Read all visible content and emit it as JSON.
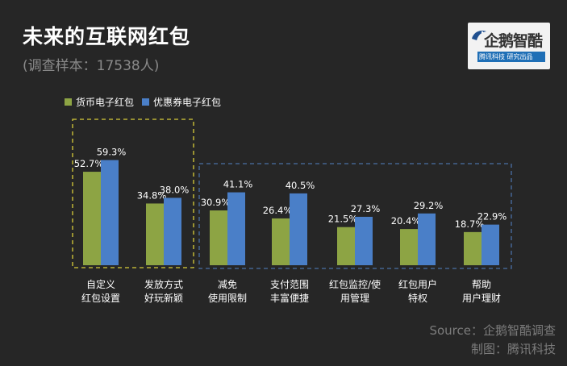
{
  "header": {
    "title": "未来的互联网红包",
    "subtitle": "(调查样本：17538人)"
  },
  "logo": {
    "name": "企鹅智酷",
    "tagline": "腾讯科技 研究出品"
  },
  "legend": [
    "货币电子红包",
    "优惠券电子红包"
  ],
  "source": {
    "line1": "Source：企鹅智酷调查",
    "line2": "制图：腾讯科技"
  },
  "colors": {
    "background": "#262626",
    "series1": "#8da444",
    "series2": "#4a7fc8",
    "box1": "#d8cc3a",
    "box2": "#4a6fa5"
  },
  "chart_data": {
    "type": "bar",
    "categories": [
      [
        "自定义",
        "红包设置"
      ],
      [
        "发放方式",
        "好玩新颖"
      ],
      [
        "减免",
        "使用限制"
      ],
      [
        "支付范围",
        "丰富便捷"
      ],
      [
        "红包监控/使",
        "用管理"
      ],
      [
        "红包用户",
        "特权"
      ],
      [
        "帮助",
        "用户理财"
      ]
    ],
    "series": [
      {
        "name": "货币电子红包",
        "values": [
          52.7,
          34.8,
          30.9,
          26.4,
          21.5,
          20.4,
          18.7
        ],
        "labels": [
          "52.7%",
          "34.8%",
          "30.9%",
          "26.4%",
          "21.5%",
          "20.4%",
          "18.7%"
        ]
      },
      {
        "name": "优惠券电子红包",
        "values": [
          59.3,
          38.0,
          41.1,
          40.5,
          27.3,
          29.2,
          22.9
        ],
        "labels": [
          "59.3%",
          "38.0%",
          "41.1%",
          "40.5%",
          "27.3%",
          "29.2%",
          "22.9%"
        ]
      }
    ],
    "unit": "%",
    "ylim": [
      0,
      70
    ],
    "grid": false,
    "legend_position": "top-left",
    "groups": [
      {
        "categories": [
          0,
          1
        ],
        "border": "dashed",
        "color": "#d8cc3a"
      },
      {
        "categories": [
          2,
          3,
          4,
          5,
          6
        ],
        "border": "dashed",
        "color": "#4a6fa5"
      }
    ]
  }
}
